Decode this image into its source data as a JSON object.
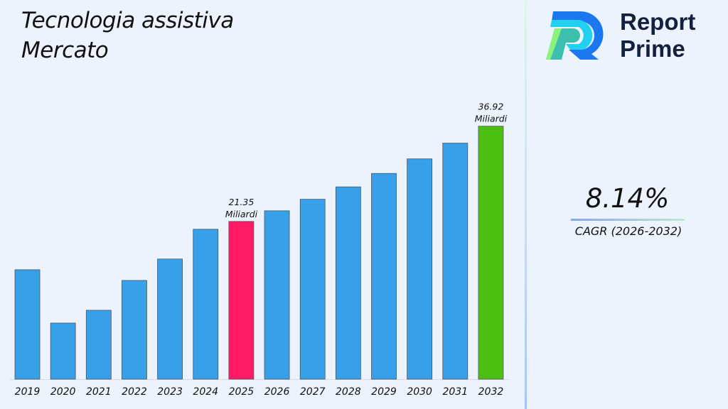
{
  "brand": {
    "line1": "Report",
    "line2": "Prime"
  },
  "cagr": {
    "value": "8.14%",
    "label": "CAGR (2026-2032)"
  },
  "colors": {
    "default_bar": "#37a0e8",
    "highlight_2025": "#ff1a66",
    "highlight_2032": "#4cbf12"
  },
  "chart_data": {
    "type": "bar",
    "title": "Tecnologia assistiva Mercato",
    "title_lines": [
      "Tecnologia assistiva",
      "Mercato"
    ],
    "categories": [
      "2019",
      "2020",
      "2021",
      "2022",
      "2023",
      "2024",
      "2025",
      "2026",
      "2027",
      "2028",
      "2029",
      "2030",
      "2031",
      "2032"
    ],
    "values": [
      13.45,
      4.73,
      6.82,
      11.7,
      15.2,
      20.07,
      21.35,
      23.09,
      24.97,
      27.0,
      29.2,
      31.58,
      34.15,
      36.92
    ],
    "unit": "Miliardi",
    "data_labels": [
      {
        "index": 6,
        "value": "21.35",
        "unit": "Miliardi"
      },
      {
        "index": 13,
        "value": "36.92",
        "unit": "Miliardi"
      }
    ],
    "ylim": [
      -4.45,
      42
    ],
    "grid": false,
    "xlabel": "",
    "ylabel": ""
  }
}
